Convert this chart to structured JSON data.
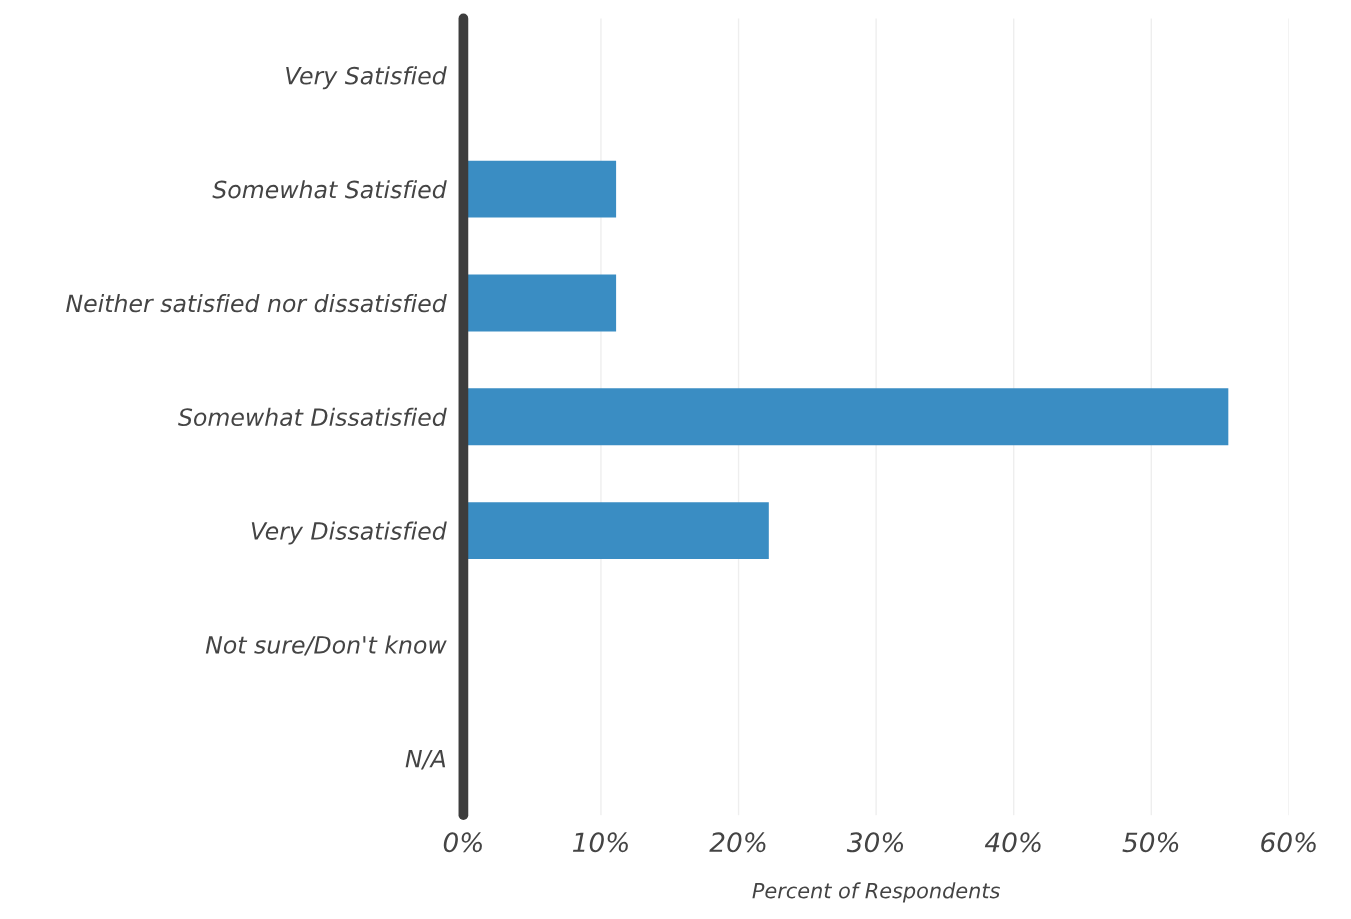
{
  "chart_data": {
    "type": "bar",
    "orientation": "horizontal",
    "categories": [
      "Very Satisfied",
      "Somewhat Satisfied",
      "Neither satisfied nor dissatisfied",
      "Somewhat Dissatisfied",
      "Very Dissatisfied",
      "Not sure/Don't know",
      "N/A"
    ],
    "values": [
      0,
      11.1,
      11.1,
      55.6,
      22.2,
      0,
      0
    ],
    "color": "#3a8dc3",
    "xlabel": "Percent of Respondents",
    "xlim": [
      0,
      60
    ],
    "xticks": [
      {
        "value": 0,
        "label": "0%"
      },
      {
        "value": 10,
        "label": "10%"
      },
      {
        "value": 20,
        "label": "20%"
      },
      {
        "value": 30,
        "label": "30%"
      },
      {
        "value": 40,
        "label": "40%"
      },
      {
        "value": 50,
        "label": "50%"
      },
      {
        "value": 60,
        "label": "60%"
      }
    ],
    "grid": "x",
    "legend": false
  }
}
